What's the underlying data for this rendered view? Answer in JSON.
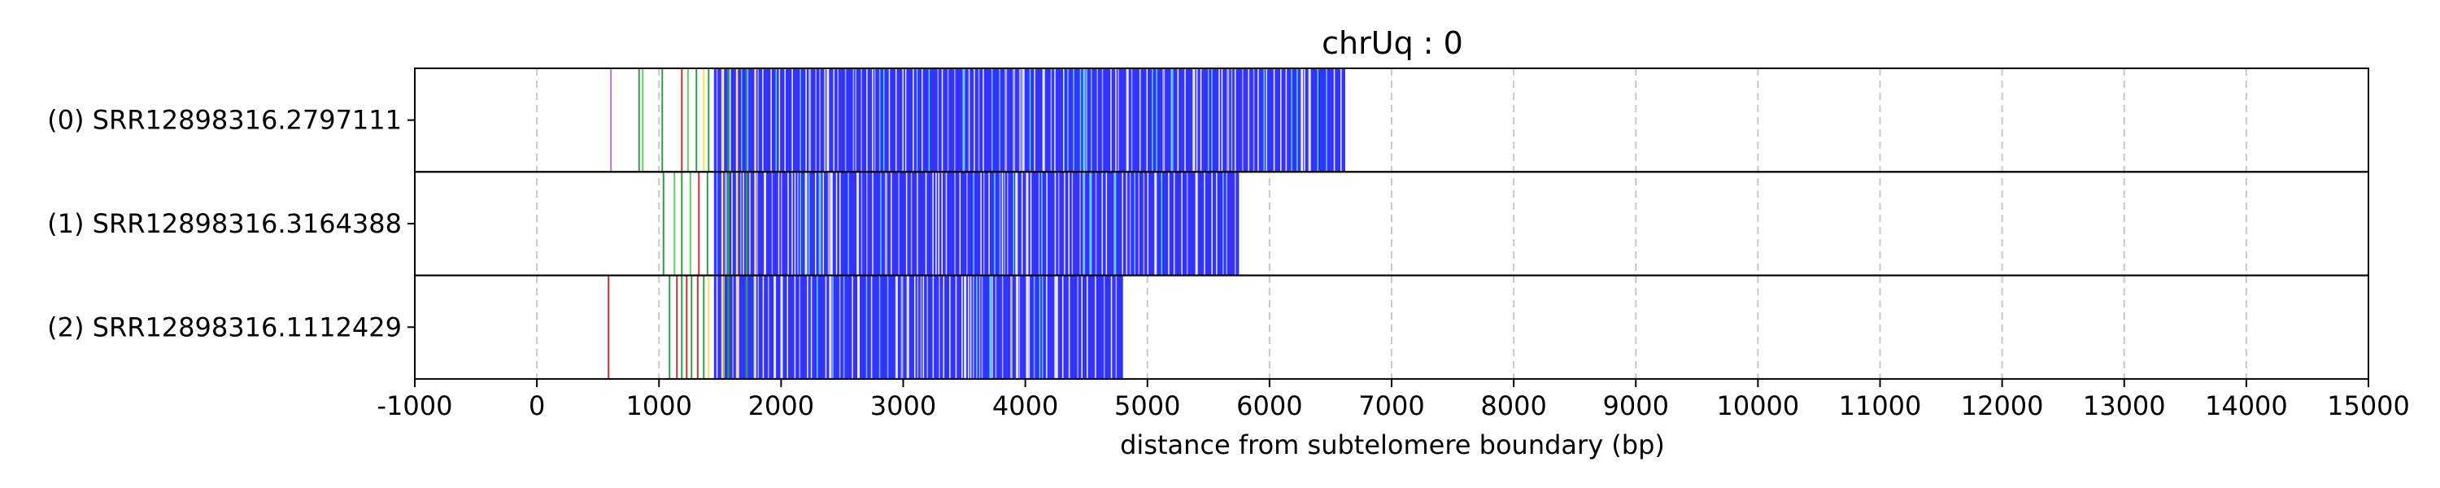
{
  "chart_data": {
    "type": "bar",
    "title": "chrUq : 0",
    "xlabel": "distance from subtelomere boundary (bp)",
    "ylabel": "",
    "xlim": [
      -1000,
      15000
    ],
    "xticks": [
      -1000,
      0,
      1000,
      2000,
      3000,
      4000,
      5000,
      6000,
      7000,
      8000,
      9000,
      10000,
      11000,
      12000,
      13000,
      14000,
      15000
    ],
    "grid": "vertical dashed",
    "colors": {
      "main": "#3333ff",
      "accent_white": "#ffffff",
      "accent_lavender": "#b8b8ee",
      "accent_cyan": "#66e0f0",
      "accent_yellow": "#ffe14d",
      "accent_green": "#2e9e4a",
      "accent_violet": "#c070d8",
      "accent_red": "#cc3333"
    },
    "reads": [
      {
        "label": "(0) SRR12898316.2797111",
        "dense_start": 1450,
        "end": 6620,
        "sparse_marks": [
          {
            "x": 600,
            "color": "#c070d8"
          },
          {
            "x": 830,
            "color": "#2e9e4a"
          },
          {
            "x": 860,
            "color": "#66cc66"
          },
          {
            "x": 1020,
            "color": "#2e9e4a"
          },
          {
            "x": 1180,
            "color": "#cc3333"
          },
          {
            "x": 1230,
            "color": "#66cc66"
          },
          {
            "x": 1300,
            "color": "#2e9e4a"
          },
          {
            "x": 1360,
            "color": "#ffe14d"
          },
          {
            "x": 1400,
            "color": "#2e9e4a"
          }
        ]
      },
      {
        "label": "(1) SRR12898316.3164388",
        "dense_start": 1450,
        "end": 5750,
        "sparse_marks": [
          {
            "x": 1030,
            "color": "#2e9e4a"
          },
          {
            "x": 1120,
            "color": "#66cc66"
          },
          {
            "x": 1180,
            "color": "#2e9e4a"
          },
          {
            "x": 1250,
            "color": "#66cc66"
          },
          {
            "x": 1320,
            "color": "#cc3333"
          },
          {
            "x": 1390,
            "color": "#2e9e4a"
          }
        ]
      },
      {
        "label": "(2) SRR12898316.1112429",
        "dense_start": 1450,
        "end": 4800,
        "sparse_marks": [
          {
            "x": 580,
            "color": "#cc3333"
          },
          {
            "x": 1080,
            "color": "#2e9e4a"
          },
          {
            "x": 1140,
            "color": "#cc3333"
          },
          {
            "x": 1180,
            "color": "#2e9e4a"
          },
          {
            "x": 1220,
            "color": "#cc3333"
          },
          {
            "x": 1260,
            "color": "#2e9e4a"
          },
          {
            "x": 1310,
            "color": "#cc3333"
          },
          {
            "x": 1360,
            "color": "#2e9e4a"
          },
          {
            "x": 1400,
            "color": "#ffe14d"
          }
        ]
      }
    ]
  }
}
